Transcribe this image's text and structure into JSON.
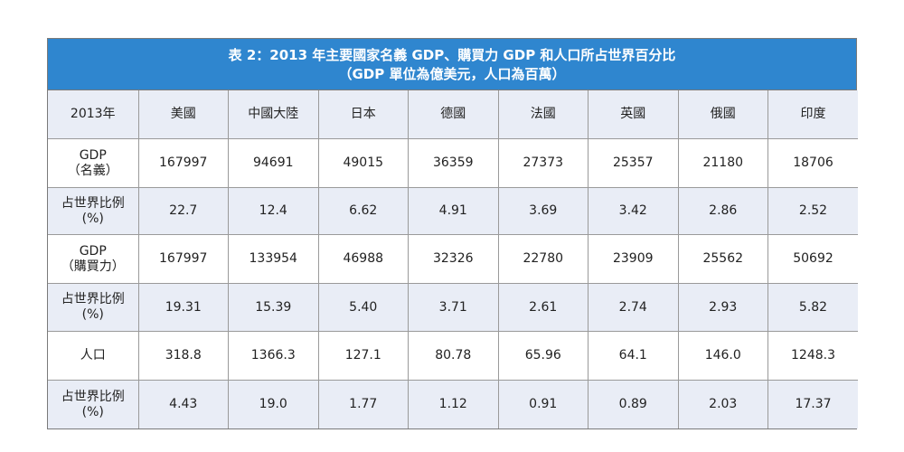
{
  "title": {
    "line1": "表 2：2013 年主要國家名義 GDP、購買力 GDP 和人口所占世界百分比",
    "line2": "（GDP 單位為億美元，人口為百萬）"
  },
  "header": {
    "year": "2013年",
    "countries": [
      "美國",
      "中國大陸",
      "日本",
      "德國",
      "法國",
      "英國",
      "俄國",
      "印度"
    ]
  },
  "rows": [
    {
      "label": [
        "GDP",
        "（名義）"
      ],
      "values": [
        "167997",
        "94691",
        "49015",
        "36359",
        "27373",
        "25357",
        "21180",
        "18706"
      ]
    },
    {
      "label": [
        "占世界比例",
        "(%)"
      ],
      "values": [
        "22.7",
        "12.4",
        "6.62",
        "4.91",
        "3.69",
        "3.42",
        "2.86",
        "2.52"
      ]
    },
    {
      "label": [
        "GDP",
        "（購買力）"
      ],
      "values": [
        "167997",
        "133954",
        "46988",
        "32326",
        "22780",
        "23909",
        "25562",
        "50692"
      ]
    },
    {
      "label": [
        "占世界比例",
        "(%)"
      ],
      "values": [
        "19.31",
        "15.39",
        "5.40",
        "3.71",
        "2.61",
        "2.74",
        "2.93",
        "5.82"
      ]
    },
    {
      "label": [
        "人口"
      ],
      "values": [
        "318.8",
        "1366.3",
        "127.1",
        "80.78",
        "65.96",
        "64.1",
        "146.0",
        "1248.3"
      ]
    },
    {
      "label": [
        "占世界比例",
        "(%)"
      ],
      "values": [
        "4.43",
        "19.0",
        "1.77",
        "1.12",
        "0.91",
        "0.89",
        "2.03",
        "17.37"
      ]
    }
  ]
}
